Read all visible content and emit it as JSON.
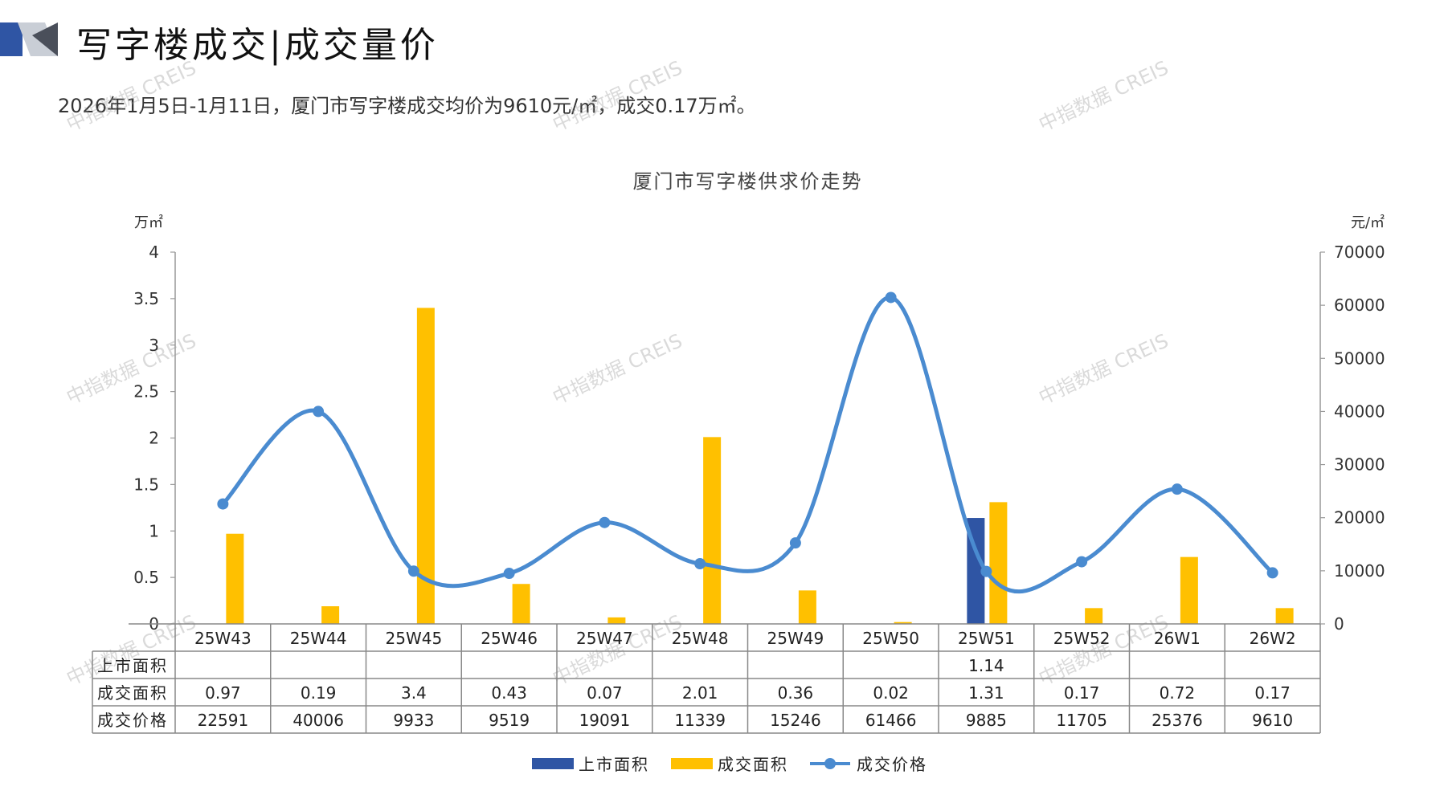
{
  "page": {
    "title": "写字楼成交|成交量价",
    "summary": "2026年1月5日-1月11日，厦门市写字楼成交均价为9610元/㎡，成交0.17万㎡。",
    "watermark": "中指数据 CREIS"
  },
  "chart_data": {
    "type": "bar",
    "title": "厦门市写字楼供求价走势",
    "y_left_unit": "万㎡",
    "y_right_unit": "元/㎡",
    "ylim_left": [
      0,
      4
    ],
    "ylim_right": [
      0,
      70000
    ],
    "y_left_ticks": [
      "0",
      "0.5",
      "1",
      "1.5",
      "2",
      "2.5",
      "3",
      "3.5",
      "4"
    ],
    "y_right_ticks": [
      "0",
      "10000",
      "20000",
      "30000",
      "40000",
      "50000",
      "60000",
      "70000"
    ],
    "categories": [
      "25W43",
      "25W44",
      "25W45",
      "25W46",
      "25W47",
      "25W48",
      "25W49",
      "25W50",
      "25W51",
      "25W52",
      "26W1",
      "26W2"
    ],
    "series": [
      {
        "name": "上市面积",
        "kind": "bar",
        "axis": "left",
        "color": "#2f55a4",
        "values": [
          null,
          null,
          null,
          null,
          null,
          null,
          null,
          null,
          1.14,
          null,
          null,
          null
        ],
        "labels": [
          "",
          "",
          "",
          "",
          "",
          "",
          "",
          "",
          "1.14",
          "",
          "",
          ""
        ]
      },
      {
        "name": "成交面积",
        "kind": "bar",
        "axis": "left",
        "color": "#ffc000",
        "values": [
          0.97,
          0.19,
          3.4,
          0.43,
          0.07,
          2.01,
          0.36,
          0.02,
          1.31,
          0.17,
          0.72,
          0.17
        ],
        "labels": [
          "0.97",
          "0.19",
          "3.4",
          "0.43",
          "0.07",
          "2.01",
          "0.36",
          "0.02",
          "1.31",
          "0.17",
          "0.72",
          "0.17"
        ]
      },
      {
        "name": "成交价格",
        "kind": "line",
        "axis": "right",
        "color": "#4a8bd0",
        "values": [
          22591,
          40006,
          9933,
          9519,
          19091,
          11339,
          15246,
          61466,
          9885,
          11705,
          25376,
          9610
        ],
        "labels": [
          "22591",
          "40006",
          "9933",
          "9519",
          "19091",
          "11339",
          "15246",
          "61466",
          "9885",
          "11705",
          "25376",
          "9610"
        ]
      }
    ],
    "legend_position": "bottom",
    "grid": false,
    "data_table": true
  }
}
